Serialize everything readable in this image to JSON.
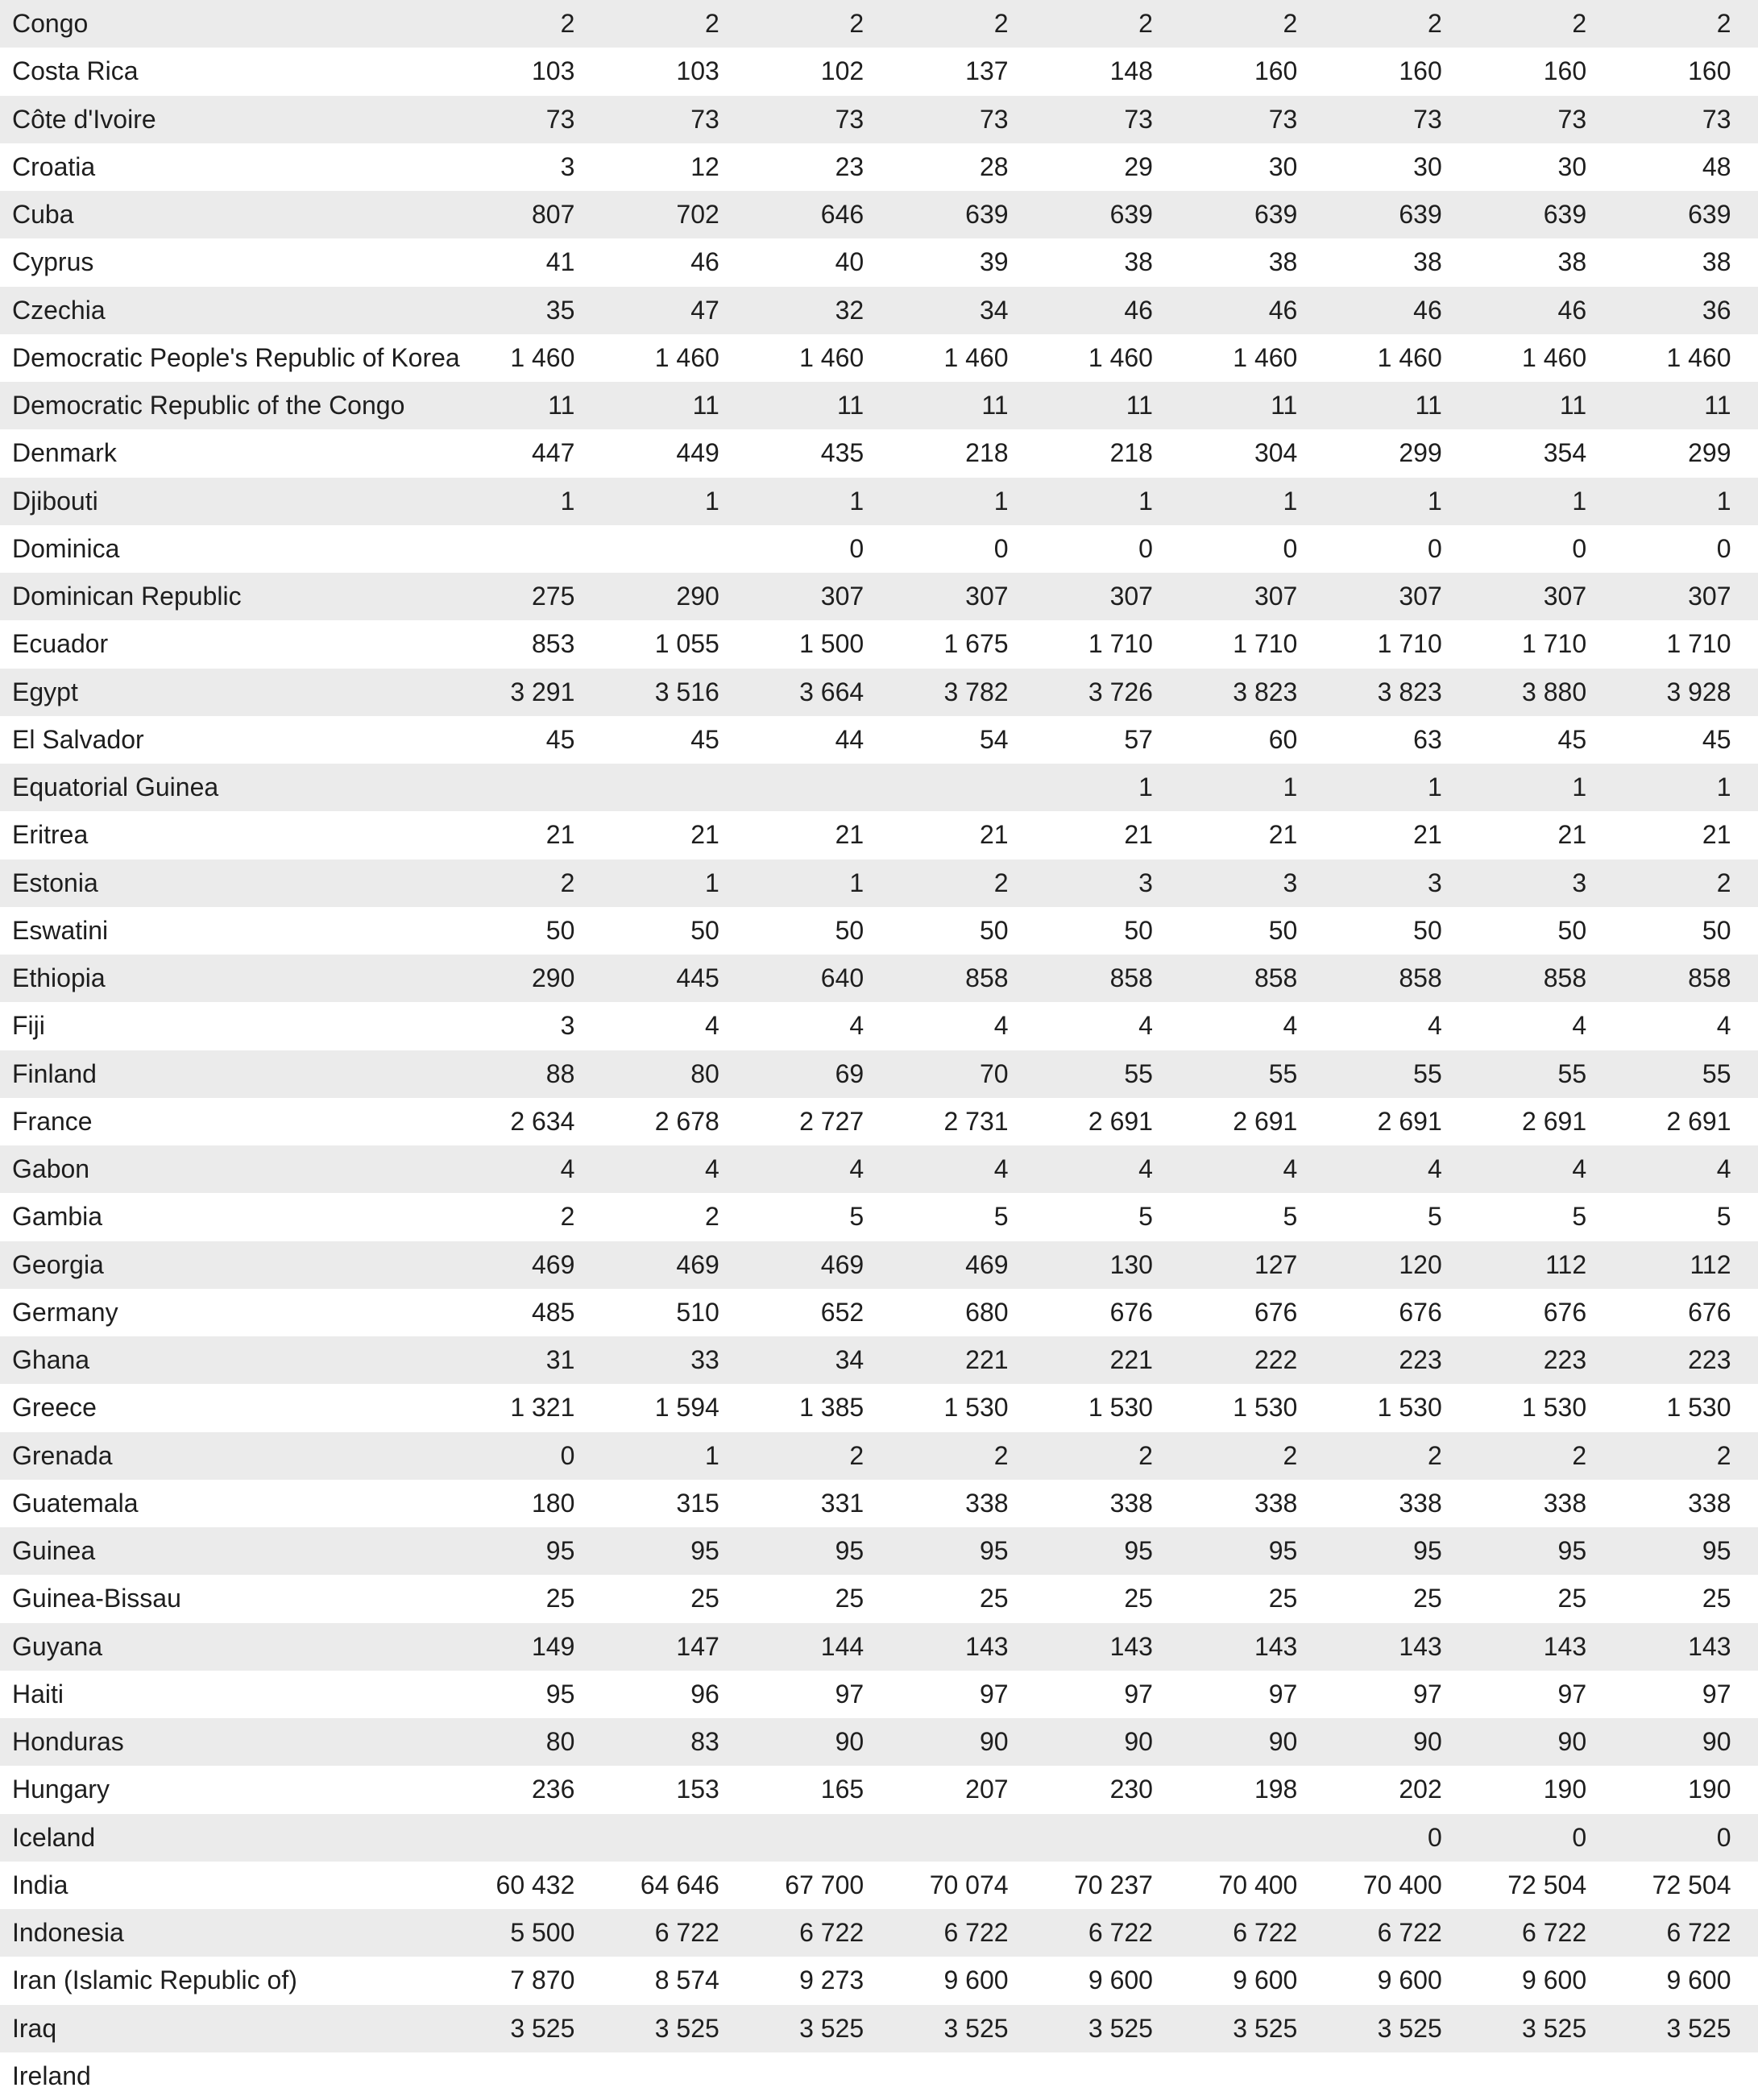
{
  "table": {
    "rows": [
      [
        "Congo",
        "2",
        "2",
        "2",
        "2",
        "2",
        "2",
        "2",
        "2",
        "2"
      ],
      [
        "Costa Rica",
        "103",
        "103",
        "102",
        "137",
        "148",
        "160",
        "160",
        "160",
        "160"
      ],
      [
        "Côte d'Ivoire",
        "73",
        "73",
        "73",
        "73",
        "73",
        "73",
        "73",
        "73",
        "73"
      ],
      [
        "Croatia",
        "3",
        "12",
        "23",
        "28",
        "29",
        "30",
        "30",
        "30",
        "48"
      ],
      [
        "Cuba",
        "807",
        "702",
        "646",
        "639",
        "639",
        "639",
        "639",
        "639",
        "639"
      ],
      [
        "Cyprus",
        "41",
        "46",
        "40",
        "39",
        "38",
        "38",
        "38",
        "38",
        "38"
      ],
      [
        "Czechia",
        "35",
        "47",
        "32",
        "34",
        "46",
        "46",
        "46",
        "46",
        "36"
      ],
      [
        "Democratic People's Republic of Korea",
        "1 460",
        "1 460",
        "1 460",
        "1 460",
        "1 460",
        "1 460",
        "1 460",
        "1 460",
        "1 460"
      ],
      [
        "Democratic Republic of the Congo",
        "11",
        "11",
        "11",
        "11",
        "11",
        "11",
        "11",
        "11",
        "11"
      ],
      [
        "Denmark",
        "447",
        "449",
        "435",
        "218",
        "218",
        "304",
        "299",
        "354",
        "299"
      ],
      [
        "Djibouti",
        "1",
        "1",
        "1",
        "1",
        "1",
        "1",
        "1",
        "1",
        "1"
      ],
      [
        "Dominica",
        null,
        null,
        "0",
        "0",
        "0",
        "0",
        "0",
        "0",
        "0"
      ],
      [
        "Dominican Republic",
        "275",
        "290",
        "307",
        "307",
        "307",
        "307",
        "307",
        "307",
        "307"
      ],
      [
        "Ecuador",
        "853",
        "1 055",
        "1 500",
        "1 675",
        "1 710",
        "1 710",
        "1 710",
        "1 710",
        "1 710"
      ],
      [
        "Egypt",
        "3 291",
        "3 516",
        "3 664",
        "3 782",
        "3 726",
        "3 823",
        "3 823",
        "3 880",
        "3 928"
      ],
      [
        "El Salvador",
        "45",
        "45",
        "44",
        "54",
        "57",
        "60",
        "63",
        "45",
        "45"
      ],
      [
        "Equatorial Guinea",
        null,
        null,
        null,
        null,
        "1",
        "1",
        "1",
        "1",
        "1"
      ],
      [
        "Eritrea",
        "21",
        "21",
        "21",
        "21",
        "21",
        "21",
        "21",
        "21",
        "21"
      ],
      [
        "Estonia",
        "2",
        "1",
        "1",
        "2",
        "3",
        "3",
        "3",
        "3",
        "2"
      ],
      [
        "Eswatini",
        "50",
        "50",
        "50",
        "50",
        "50",
        "50",
        "50",
        "50",
        "50"
      ],
      [
        "Ethiopia",
        "290",
        "445",
        "640",
        "858",
        "858",
        "858",
        "858",
        "858",
        "858"
      ],
      [
        "Fiji",
        "3",
        "4",
        "4",
        "4",
        "4",
        "4",
        "4",
        "4",
        "4"
      ],
      [
        "Finland",
        "88",
        "80",
        "69",
        "70",
        "55",
        "55",
        "55",
        "55",
        "55"
      ],
      [
        "France",
        "2 634",
        "2 678",
        "2 727",
        "2 731",
        "2 691",
        "2 691",
        "2 691",
        "2 691",
        "2 691"
      ],
      [
        "Gabon",
        "4",
        "4",
        "4",
        "4",
        "4",
        "4",
        "4",
        "4",
        "4"
      ],
      [
        "Gambia",
        "2",
        "2",
        "5",
        "5",
        "5",
        "5",
        "5",
        "5",
        "5"
      ],
      [
        "Georgia",
        "469",
        "469",
        "469",
        "469",
        "130",
        "127",
        "120",
        "112",
        "112"
      ],
      [
        "Germany",
        "485",
        "510",
        "652",
        "680",
        "676",
        "676",
        "676",
        "676",
        "676"
      ],
      [
        "Ghana",
        "31",
        "33",
        "34",
        "221",
        "221",
        "222",
        "223",
        "223",
        "223"
      ],
      [
        "Greece",
        "1 321",
        "1 594",
        "1 385",
        "1 530",
        "1 530",
        "1 530",
        "1 530",
        "1 530",
        "1 530"
      ],
      [
        "Grenada",
        "0",
        "1",
        "2",
        "2",
        "2",
        "2",
        "2",
        "2",
        "2"
      ],
      [
        "Guatemala",
        "180",
        "315",
        "331",
        "338",
        "338",
        "338",
        "338",
        "338",
        "338"
      ],
      [
        "Guinea",
        "95",
        "95",
        "95",
        "95",
        "95",
        "95",
        "95",
        "95",
        "95"
      ],
      [
        "Guinea-Bissau",
        "25",
        "25",
        "25",
        "25",
        "25",
        "25",
        "25",
        "25",
        "25"
      ],
      [
        "Guyana",
        "149",
        "147",
        "144",
        "143",
        "143",
        "143",
        "143",
        "143",
        "143"
      ],
      [
        "Haiti",
        "95",
        "96",
        "97",
        "97",
        "97",
        "97",
        "97",
        "97",
        "97"
      ],
      [
        "Honduras",
        "80",
        "83",
        "90",
        "90",
        "90",
        "90",
        "90",
        "90",
        "90"
      ],
      [
        "Hungary",
        "236",
        "153",
        "165",
        "207",
        "230",
        "198",
        "202",
        "190",
        "190"
      ],
      [
        "Iceland",
        null,
        null,
        null,
        null,
        null,
        null,
        "0",
        "0",
        "0"
      ],
      [
        "India",
        "60 432",
        "64 646",
        "67 700",
        "70 074",
        "70 237",
        "70 400",
        "70 400",
        "72 504",
        "72 504"
      ],
      [
        "Indonesia",
        "5 500",
        "6 722",
        "6 722",
        "6 722",
        "6 722",
        "6 722",
        "6 722",
        "6 722",
        "6 722"
      ],
      [
        "Iran (Islamic Republic of)",
        "7 870",
        "8 574",
        "9 273",
        "9 600",
        "9 600",
        "9 600",
        "9 600",
        "9 600",
        "9 600"
      ],
      [
        "Iraq",
        "3 525",
        "3 525",
        "3 525",
        "3 525",
        "3 525",
        "3 525",
        "3 525",
        "3 525",
        "3 525"
      ],
      [
        "Ireland",
        null,
        null,
        null,
        null,
        null,
        null,
        null,
        null,
        null
      ]
    ]
  }
}
